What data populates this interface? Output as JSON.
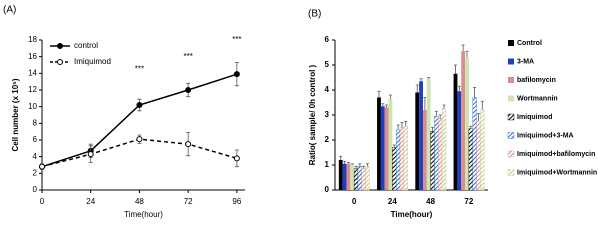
{
  "chart_data": [
    {
      "type": "line",
      "title": "(A)",
      "x_label": "Time(hour)",
      "y_label": "Cell number (x 10⁵)",
      "x": [
        0,
        24,
        48,
        72,
        96
      ],
      "xlim": [
        0,
        100
      ],
      "xticks": [
        0,
        24,
        48,
        72,
        96
      ],
      "ylim": [
        0,
        18
      ],
      "yticks": [
        0,
        2,
        4,
        6,
        8,
        10,
        12,
        14,
        16,
        18
      ],
      "legend": "upper left",
      "series": [
        {
          "name": "control",
          "color": "#000000",
          "line_style": "solid",
          "marker_fill": "filled",
          "values": [
            2.8,
            4.7,
            10.2,
            12.0,
            13.9
          ],
          "errors": [
            0.3,
            0.8,
            0.7,
            0.8,
            1.4
          ]
        },
        {
          "name": "Imiquimod",
          "color": "#000000",
          "line_style": "dashed",
          "marker_fill": "open",
          "values": [
            2.8,
            4.3,
            6.1,
            5.5,
            3.8
          ],
          "errors": [
            0.3,
            1.0,
            0.5,
            1.4,
            1.0
          ]
        }
      ],
      "annotations": [
        {
          "text": "***",
          "x": 48,
          "y": 14.5
        },
        {
          "text": "***",
          "x": 72,
          "y": 16
        },
        {
          "text": "***",
          "x": 96,
          "y": 18
        }
      ]
    },
    {
      "type": "bar",
      "title": "(B)",
      "x_label": "Time(hour)",
      "y_label": "Ratio( sample/ 0h control )",
      "categories": [
        "0",
        "24",
        "48",
        "72"
      ],
      "ylim": [
        0,
        6
      ],
      "yticks": [
        0,
        1,
        2,
        3,
        4,
        5,
        6
      ],
      "legend": "right",
      "series": [
        {
          "name": "Control",
          "color": "#000000",
          "hatch": false,
          "values": [
            1.2,
            3.7,
            3.9,
            4.65
          ],
          "errors": [
            0.15,
            0.25,
            0.3,
            0.35
          ]
        },
        {
          "name": "3-MA",
          "color": "#1f3fbf",
          "hatch": false,
          "values": [
            1.05,
            3.35,
            4.35,
            3.95
          ],
          "errors": [
            0.1,
            0.1,
            0.1,
            0.2
          ]
        },
        {
          "name": "bafilomycin",
          "color": "#d9908c",
          "hatch": false,
          "values": [
            1.05,
            3.3,
            3.2,
            5.55
          ],
          "errors": [
            0.05,
            0.1,
            0.5,
            0.25
          ]
        },
        {
          "name": "Wortmannin",
          "color": "#cfe3b5",
          "hatch": false,
          "values": [
            1.0,
            3.65,
            4.45,
            5.3
          ],
          "errors": [
            0.05,
            0.15,
            0.05,
            0.25
          ]
        },
        {
          "name": "Imiquimod",
          "color": "#000000",
          "hatch": true,
          "values": [
            0.85,
            1.7,
            2.35,
            2.45
          ],
          "errors": [
            0.1,
            0.1,
            0.15,
            0.1
          ]
        },
        {
          "name": "Imiquimod+3-MA",
          "color": "#2f6fcf",
          "hatch": true,
          "values": [
            0.95,
            2.4,
            2.95,
            3.7
          ],
          "errors": [
            0.1,
            0.2,
            0.2,
            0.4
          ]
        },
        {
          "name": "Imiquimod+bafilomycin",
          "color": "#d9908c",
          "hatch": true,
          "values": [
            0.85,
            2.5,
            2.85,
            2.75
          ],
          "errors": [
            0.1,
            0.2,
            0.15,
            0.3
          ]
        },
        {
          "name": "Imiquimod+Wortmannin",
          "color": "#c8c890",
          "hatch": true,
          "values": [
            0.95,
            2.55,
            3.25,
            3.2
          ],
          "errors": [
            0.1,
            0.2,
            0.15,
            0.35
          ]
        }
      ]
    }
  ]
}
